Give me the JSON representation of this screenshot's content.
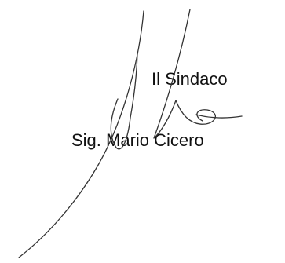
{
  "signature_block": {
    "role": "Il Sindaco",
    "name": "Sig. Mario Cicero"
  },
  "colors": {
    "text": "#111111",
    "ink": "#333333",
    "background": "#ffffff"
  }
}
